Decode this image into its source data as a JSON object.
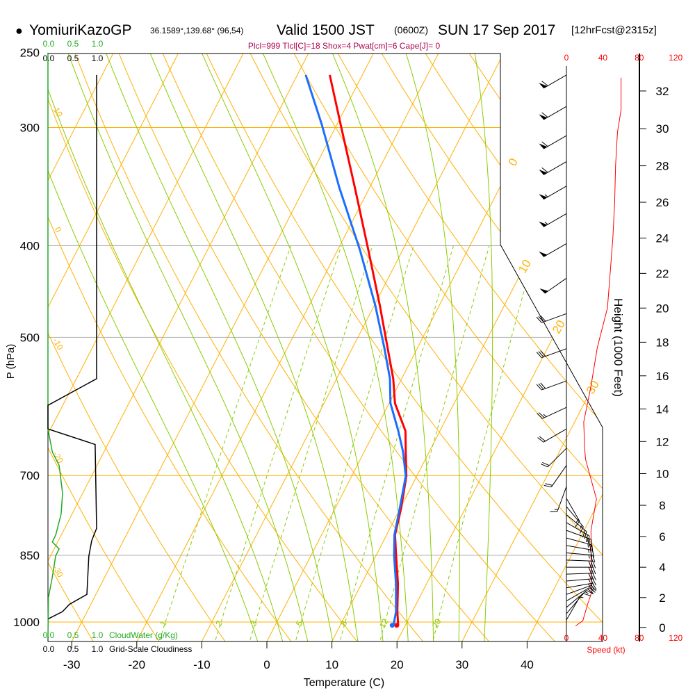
{
  "header": {
    "bullet": "●",
    "station": "YomiuriKazoGP",
    "coords": "36.1589°,139.68° (96,54)",
    "valid": "Valid 1500 JST",
    "zulu": "(0600Z)",
    "date": "SUN 17 Sep 2017",
    "forecast": "[12hrFcst@2315z]"
  },
  "indices": "Plcl=999 Tlcl[C]=18 Shox=4 Pwat[cm]=6 Cape[J]= 0",
  "colors": {
    "temperature": "#ff0000",
    "dewpoint": "#1a6eff",
    "isotherm": "#ffb000",
    "moist": "#88cc00",
    "cloudwater": "#22aa22",
    "indices": "#b0004e",
    "speed": "#ff0000"
  },
  "chart_data": {
    "type": "skew-t",
    "title": "YomiuriKazoGP Valid 1500 JST (0600Z) SUN 17 Sep 2017",
    "xlabel": "Temperature (C)",
    "ylabel": "P (hPa)",
    "x_ticks": [
      -30,
      -20,
      -10,
      0,
      10,
      20,
      30,
      40
    ],
    "pressure_ticks": [
      250,
      300,
      400,
      500,
      700,
      850,
      1000
    ],
    "temperature": {
      "name": "Temperature",
      "p": [
        264,
        298,
        347,
        404,
        463,
        513,
        553,
        587,
        628,
        661,
        701,
        757,
        809,
        851,
        911,
        975,
        1008
      ],
      "t": [
        -35.0,
        -29.4,
        -22.3,
        -15.3,
        -9.1,
        -4.6,
        -1.3,
        0.9,
        4.7,
        6.4,
        8.4,
        10.1,
        11.3,
        13.1,
        15.6,
        17.7,
        18.9
      ]
    },
    "dewpoint": {
      "name": "Dewpoint",
      "p": [
        264,
        298,
        347,
        404,
        463,
        513,
        553,
        587,
        628,
        661,
        701,
        757,
        809,
        851,
        911,
        975,
        1008
      ],
      "t": [
        -38.7,
        -32.3,
        -24.7,
        -16.6,
        -9.8,
        -5.1,
        -1.8,
        0.2,
        3.6,
        6.0,
        8.3,
        9.9,
        11.2,
        12.8,
        15.3,
        17.5,
        18.2
      ]
    },
    "dry_adiabats_theta_c": [
      -40,
      -30,
      -20,
      -10,
      0,
      10,
      20,
      30,
      40,
      50,
      60,
      70,
      80,
      90,
      100,
      110,
      120,
      130,
      140,
      150
    ],
    "dry_adiabat_labels": [
      10,
      0,
      -10,
      -20,
      -30
    ],
    "moist_adiabats_thetaw_c": [
      -4,
      0,
      4,
      8,
      12,
      16,
      20,
      24,
      28,
      32
    ],
    "mixing_ratios_gkg": [
      1,
      2,
      3,
      5,
      8,
      12,
      20
    ],
    "isotherm_labels": [
      0,
      10,
      20,
      30
    ],
    "cloud_water": {
      "label": "CloudWater (g/Kg)",
      "ticks": [
        "0.0",
        "0.5",
        "1.0"
      ],
      "p": [
        250,
        625,
        661,
        683,
        731,
        769,
        809,
        823,
        837,
        851,
        896,
        942,
        1040
      ],
      "v": [
        0,
        0,
        0.09,
        0.23,
        0.3,
        0.27,
        0.16,
        0.09,
        0.23,
        0.16,
        0.09,
        0.01,
        0
      ]
    },
    "cloudiness": {
      "label": "Grid-Scale Cloudiness",
      "ticks": [
        "0.0",
        "0.5",
        "1.0"
      ],
      "p": [
        264,
        553,
        590,
        625,
        649,
        796,
        820,
        852,
        935,
        958,
        975,
        992
      ],
      "v": [
        1.0,
        1.0,
        0,
        0,
        0.97,
        1.0,
        0.9,
        0.84,
        0.8,
        0.44,
        0.3,
        0.01
      ]
    },
    "wind_speed": {
      "label": "Speed (kt)",
      "ticks": [
        "0",
        "40",
        "80",
        "120"
      ],
      "height_kft": [
        32.7,
        31.0,
        29.8,
        28,
        26,
        24,
        22,
        20,
        17.7,
        15.4,
        13.2,
        11.6,
        10.9,
        8.4,
        6.4,
        4.6,
        2.4,
        1.5,
        0.45,
        0.1
      ],
      "speed_kt": [
        60,
        60,
        56,
        54,
        53,
        51,
        48,
        45,
        34,
        27,
        19,
        20,
        21,
        33,
        27,
        27,
        28,
        23,
        18,
        10
      ]
    },
    "height_axis": {
      "label": "Height (1000 Feet)",
      "ticks": [
        0,
        2,
        4,
        6,
        8,
        10,
        12,
        14,
        16,
        18,
        20,
        22,
        24,
        26,
        28,
        30,
        32
      ]
    },
    "wind_barbs": [
      {
        "p": 264,
        "dir": 240,
        "spd": 60
      },
      {
        "p": 285,
        "dir": 240,
        "spd": 60
      },
      {
        "p": 306,
        "dir": 240,
        "spd": 60
      },
      {
        "p": 326,
        "dir": 240,
        "spd": 60
      },
      {
        "p": 346,
        "dir": 240,
        "spd": 55
      },
      {
        "p": 370,
        "dir": 240,
        "spd": 55
      },
      {
        "p": 398,
        "dir": 240,
        "spd": 50
      },
      {
        "p": 433,
        "dir": 235,
        "spd": 50
      },
      {
        "p": 472,
        "dir": 250,
        "spd": 30
      },
      {
        "p": 514,
        "dir": 250,
        "spd": 30
      },
      {
        "p": 556,
        "dir": 250,
        "spd": 30
      },
      {
        "p": 593,
        "dir": 245,
        "spd": 25
      },
      {
        "p": 625,
        "dir": 240,
        "spd": 20
      },
      {
        "p": 655,
        "dir": 225,
        "spd": 20
      },
      {
        "p": 683,
        "dir": 215,
        "spd": 20
      },
      {
        "p": 719,
        "dir": 200,
        "spd": 15
      },
      {
        "p": 740,
        "dir": 150,
        "spd": 15
      },
      {
        "p": 755,
        "dir": 140,
        "spd": 15
      },
      {
        "p": 770,
        "dir": 130,
        "spd": 20
      },
      {
        "p": 785,
        "dir": 120,
        "spd": 20
      },
      {
        "p": 800,
        "dir": 110,
        "spd": 25
      },
      {
        "p": 815,
        "dir": 105,
        "spd": 25
      },
      {
        "p": 830,
        "dir": 100,
        "spd": 25
      },
      {
        "p": 845,
        "dir": 95,
        "spd": 25
      },
      {
        "p": 860,
        "dir": 92,
        "spd": 30
      },
      {
        "p": 875,
        "dir": 90,
        "spd": 30
      },
      {
        "p": 890,
        "dir": 88,
        "spd": 30
      },
      {
        "p": 905,
        "dir": 85,
        "spd": 25
      },
      {
        "p": 920,
        "dir": 80,
        "spd": 25
      },
      {
        "p": 935,
        "dir": 70,
        "spd": 20
      },
      {
        "p": 950,
        "dir": 60,
        "spd": 20
      },
      {
        "p": 965,
        "dir": 50,
        "spd": 15
      },
      {
        "p": 980,
        "dir": 40,
        "spd": 10
      },
      {
        "p": 995,
        "dir": 30,
        "spd": 5
      }
    ]
  }
}
